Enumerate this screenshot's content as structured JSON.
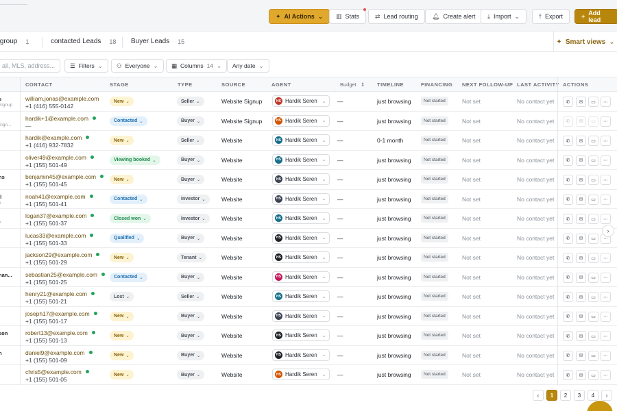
{
  "topbar": {
    "buttons": {
      "ai_actions": "AI Actions",
      "stats": "Stats",
      "lead_routing": "Lead routing",
      "create_alert": "Create alert",
      "import": "Import",
      "export": "Export",
      "add_lead": "Add lead"
    }
  },
  "tabs": [
    {
      "label": "v group",
      "count": "1"
    },
    {
      "label": "contacted Leads",
      "count": "18"
    },
    {
      "label": "Buyer Leads",
      "count": "15"
    }
  ],
  "smart_views": "Smart views",
  "filters": {
    "search_placeholder": "ail, MLS, address...",
    "filters_label": "Filters",
    "everyone_label": "Everyone",
    "columns_label": "Columns",
    "columns_count": "14",
    "date_label": "Any date"
  },
  "columns": [
    "CONTACT",
    "STAGE",
    "TYPE",
    "SOURCE",
    "AGENT",
    "Budget",
    "TIMELINE",
    "FINANCING",
    "NEXT FOLLOW-UP",
    "LAST ACTIVITY",
    "ACTIONS"
  ],
  "colors": {
    "accent": "#b8860b",
    "ai_button": "#e0a92e",
    "online_dot": "#22a35a"
  },
  "stage_styles": {
    "New": {
      "bg": "#fdf3d1",
      "fg": "#8a6410"
    },
    "Contacted": {
      "bg": "#e3f0fb",
      "fg": "#1e6fb0"
    },
    "Viewing booked": {
      "bg": "#e3f6ea",
      "fg": "#1f8a4c"
    },
    "Closed won": {
      "bg": "#e3f6ea",
      "fg": "#1f8a4c"
    },
    "Qualified": {
      "bg": "#e3f0fb",
      "fg": "#1e6fb0"
    },
    "Lost": {
      "bg": "#eef0f2",
      "fg": "#4b5058"
    }
  },
  "rows": [
    {
      "lead": "s",
      "lead_sub": "Signup",
      "email": "william.jonas@example.com",
      "online": false,
      "phone": "+1 (416) 555-0142",
      "stage": "New",
      "type": "Seller",
      "source": "Website Signup",
      "agent": "Hardik Seren",
      "agent_color": "#c0392b",
      "budget": "—",
      "timeline": "just browsing",
      "financing": "Not started",
      "next": "Not set",
      "last": "No contact yet",
      "actions_dim": false
    },
    {
      "lead": "",
      "lead_sub": "Sign...",
      "email": "hardik+1@example.com",
      "online": true,
      "phone": "—",
      "stage": "Contacted",
      "type": "Buyer",
      "source": "Website Signup",
      "agent": "Hardik Seren",
      "agent_color": "#d35400",
      "budget": "—",
      "timeline": "just browsing",
      "financing": "Not started",
      "next": "Not set",
      "last": "No contact yet",
      "actions_dim": true
    },
    {
      "lead": "",
      "lead_sub": "",
      "email": "hardik@example.com",
      "online": true,
      "phone": "+1 (416) 932-7832",
      "stage": "New",
      "type": "Seller",
      "source": "Website",
      "agent": "Hardik Seren",
      "agent_color": "#16708a",
      "budget": "—",
      "timeline": "0-1 month",
      "financing": "Not started",
      "next": "Not set",
      "last": "No contact yet",
      "actions_dim": false
    },
    {
      "lead": "",
      "lead_sub": "",
      "email": "oliver49@example.com",
      "online": true,
      "phone": "+1 (155) 501-49",
      "stage": "Viewing booked",
      "type": "Buyer",
      "source": "Website",
      "agent": "Hardik Seren",
      "agent_color": "#16708a",
      "budget": "—",
      "timeline": "just browsing",
      "financing": "Not started",
      "next": "Not set",
      "last": "No contact yet",
      "actions_dim": false
    },
    {
      "lead": "ns",
      "lead_sub": "",
      "email": "benjamin45@example.com",
      "online": true,
      "phone": "+1 (155) 501-45",
      "stage": "New",
      "type": "Buyer",
      "source": "Website",
      "agent": "Hardik Seren",
      "agent_color": "#3d4452",
      "budget": "—",
      "timeline": "just browsing",
      "financing": "Not started",
      "next": "Not set",
      "last": "No contact yet",
      "actions_dim": false
    },
    {
      "lead": "ll",
      "lead_sub": "e",
      "email": "noah41@example.com",
      "online": true,
      "phone": "+1 (155) 501-41",
      "stage": "Contacted",
      "type": "Investor",
      "source": "Website",
      "agent": "Hardik Seren",
      "agent_color": "#3d4452",
      "budget": "—",
      "timeline": "just browsing",
      "financing": "Not started",
      "next": "Not set",
      "last": "No contact yet",
      "actions_dim": false
    },
    {
      "lead": "",
      "lead_sub": "e",
      "email": "logan37@example.com",
      "online": true,
      "phone": "+1 (155) 501-37",
      "stage": "Closed won",
      "type": "Investor",
      "source": "Website",
      "agent": "Hardik Seren",
      "agent_color": "#16708a",
      "budget": "—",
      "timeline": "just browsing",
      "financing": "Not started",
      "next": "Not set",
      "last": "No contact yet",
      "actions_dim": false
    },
    {
      "lead": "",
      "lead_sub": "",
      "email": "lucas33@example.com",
      "online": true,
      "phone": "+1 (155) 501-33",
      "stage": "Qualified",
      "type": "Buyer",
      "source": "Website",
      "agent": "Hardik Seren",
      "agent_color": "#1f2328",
      "budget": "—",
      "timeline": "just browsing",
      "financing": "Not started",
      "next": "Not set",
      "last": "No contact yet",
      "actions_dim": false
    },
    {
      "lead": "",
      "lead_sub": "",
      "email": "jackson29@example.com",
      "online": true,
      "phone": "+1 (155) 501-29",
      "stage": "New",
      "type": "Tenant",
      "source": "Website",
      "agent": "Hardik Seren",
      "agent_color": "#1f2328",
      "budget": "—",
      "timeline": "just browsing",
      "financing": "Not started",
      "next": "Not set",
      "last": "No contact yet",
      "actions_dim": false
    },
    {
      "lead": "han...",
      "lead_sub": "",
      "email": "sebastian25@example.com",
      "online": true,
      "phone": "+1 (155) 501-25",
      "stage": "Contacted",
      "type": "Buyer",
      "source": "Website",
      "agent": "Hardik Seren",
      "agent_color": "#c2185b",
      "budget": "—",
      "timeline": "just browsing",
      "financing": "Not started",
      "next": "Not set",
      "last": "No contact yet",
      "actions_dim": false
    },
    {
      "lead": "",
      "lead_sub": "",
      "email": "henry21@example.com",
      "online": true,
      "phone": "+1 (155) 501-21",
      "stage": "Lost",
      "type": "Seller",
      "source": "Website",
      "agent": "Hardik Seren",
      "agent_color": "#16708a",
      "budget": "—",
      "timeline": "just browsing",
      "financing": "Not started",
      "next": "Not set",
      "last": "No contact yet",
      "actions_dim": false
    },
    {
      "lead": "",
      "lead_sub": "",
      "email": "joseph17@example.com",
      "online": true,
      "phone": "+1 (155) 501-17",
      "stage": "New",
      "type": "Buyer",
      "source": "Website",
      "agent": "Hardik Seren",
      "agent_color": "#3d4452",
      "budget": "—",
      "timeline": "just browsing",
      "financing": "Not started",
      "next": "Not set",
      "last": "No contact yet",
      "actions_dim": false
    },
    {
      "lead": "son",
      "lead_sub": "",
      "email": "robert13@example.com",
      "online": true,
      "phone": "+1 (155) 501-13",
      "stage": "New",
      "type": "Buyer",
      "source": "Website",
      "agent": "Hardik Seren",
      "agent_color": "#1f2328",
      "budget": "—",
      "timeline": "just browsing",
      "financing": "Not started",
      "next": "Not set",
      "last": "No contact yet",
      "actions_dim": false
    },
    {
      "lead": "n",
      "lead_sub": "",
      "email": "daniel9@example.com",
      "online": true,
      "phone": "+1 (155) 501-09",
      "stage": "New",
      "type": "Buyer",
      "source": "Website",
      "agent": "Hardik Seren",
      "agent_color": "#1f2328",
      "budget": "—",
      "timeline": "just browsing",
      "financing": "Not started",
      "next": "Not set",
      "last": "No contact yet",
      "actions_dim": false
    },
    {
      "lead": "",
      "lead_sub": "",
      "email": "chris5@example.com",
      "online": true,
      "phone": "+1 (155) 501-05",
      "stage": "New",
      "type": "Buyer",
      "source": "Website",
      "agent": "Hardik Seren",
      "agent_color": "#d35400",
      "budget": "—",
      "timeline": "just browsing",
      "financing": "Not started",
      "next": "Not set",
      "last": "No contact yet",
      "actions_dim": false
    }
  ],
  "agent_initials": "HS",
  "pagination": {
    "pages": [
      "1",
      "2",
      "3",
      "4"
    ],
    "current": "1"
  }
}
